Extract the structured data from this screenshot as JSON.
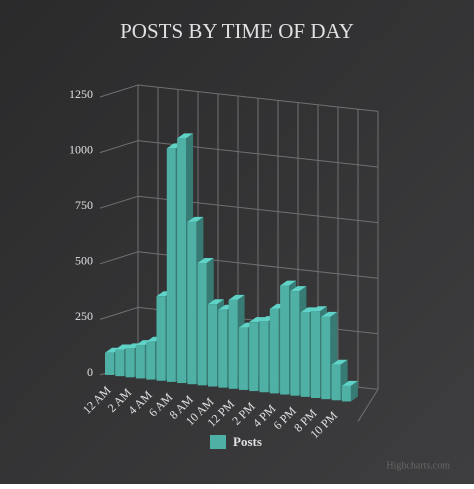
{
  "chart_data": {
    "type": "bar3d",
    "title": "POSTS BY TIME OF DAY",
    "categories": [
      "12 AM",
      null,
      "2 AM",
      null,
      "4 AM",
      null,
      "6 AM",
      null,
      "8 AM",
      null,
      "10 AM",
      null,
      "12 PM",
      null,
      "2 PM",
      null,
      "4 PM",
      null,
      "6 PM",
      null,
      "8 PM",
      null,
      "10 PM",
      null
    ],
    "series": [
      {
        "name": "Posts",
        "color": "#4fb0a6",
        "values": [
          100,
          120,
          130,
          150,
          170,
          380,
          1050,
          1100,
          730,
          550,
          370,
          350,
          400,
          280,
          310,
          320,
          380,
          490,
          470,
          380,
          390,
          370,
          160,
          70
        ]
      }
    ],
    "ylim": [
      0,
      1250
    ],
    "yticks": [
      0,
      250,
      500,
      750,
      1000,
      1250
    ],
    "grid": true,
    "credits": "Highcharts.com"
  }
}
